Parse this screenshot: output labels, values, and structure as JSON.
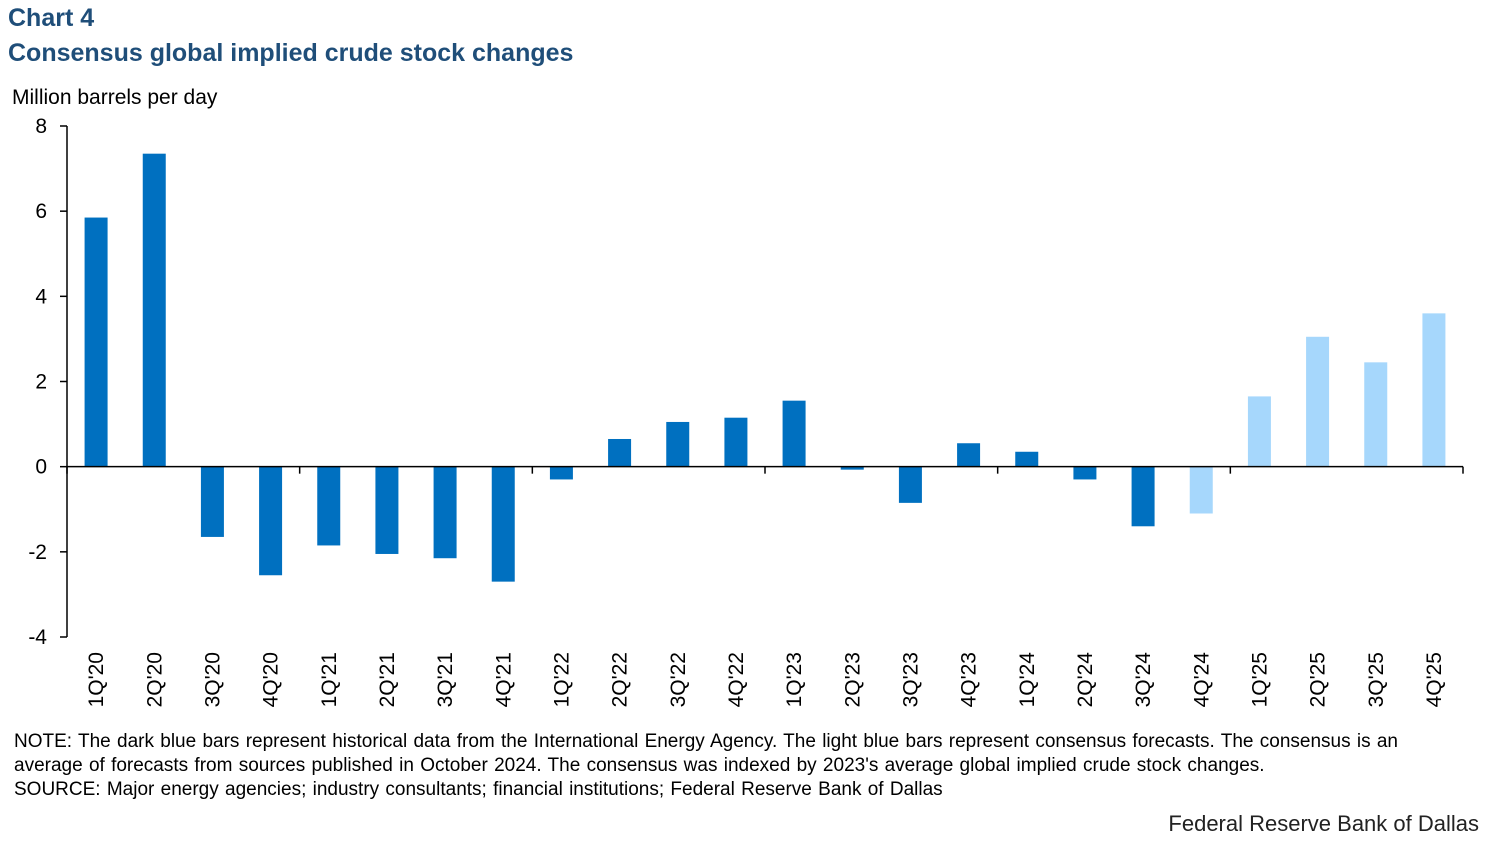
{
  "header": {
    "chart_label": "Chart 4",
    "title": "Consensus global implied crude stock changes"
  },
  "chart_data": {
    "type": "bar",
    "title": "Consensus global implied crude stock changes",
    "ylabel": "Million barrels per day",
    "xlabel": "",
    "ylim": [
      -4,
      8
    ],
    "yticks": [
      -4,
      -2,
      0,
      2,
      4,
      6,
      8
    ],
    "ytick_labels": [
      "-4",
      "-2",
      "0",
      "2",
      "4",
      "6",
      "8"
    ],
    "grid": false,
    "categories": [
      "1Q'20",
      "2Q'20",
      "3Q'20",
      "4Q'20",
      "1Q'21",
      "2Q'21",
      "3Q'21",
      "4Q'21",
      "1Q'22",
      "2Q'22",
      "3Q'22",
      "4Q'22",
      "1Q'23",
      "2Q'23",
      "3Q'23",
      "4Q'23",
      "1Q'24",
      "2Q'24",
      "3Q'24",
      "4Q'24",
      "1Q'25",
      "2Q'25",
      "3Q'25",
      "4Q'25"
    ],
    "values": [
      5.85,
      7.35,
      -1.65,
      -2.55,
      -1.85,
      -2.05,
      -2.15,
      -2.7,
      -0.3,
      0.65,
      1.05,
      1.15,
      1.55,
      -0.07,
      -0.85,
      0.55,
      0.35,
      -0.3,
      -1.4,
      -1.1,
      1.65,
      3.05,
      2.45,
      3.6
    ],
    "series_type": [
      "historical",
      "historical",
      "historical",
      "historical",
      "historical",
      "historical",
      "historical",
      "historical",
      "historical",
      "historical",
      "historical",
      "historical",
      "historical",
      "historical",
      "historical",
      "historical",
      "historical",
      "historical",
      "historical",
      "forecast",
      "forecast",
      "forecast",
      "forecast",
      "forecast"
    ],
    "colors": {
      "historical": "#0070c0",
      "forecast": "#a6d7fc"
    }
  },
  "footer": {
    "note": "NOTE: The dark blue bars represent historical data from the International Energy Agency. The light blue bars represent consensus forecasts. The consensus is an average of forecasts from sources published in October 2024. The consensus was indexed by 2023's average global implied crude stock changes.",
    "source": "SOURCE: Major energy agencies; industry consultants; financial institutions; Federal Reserve Bank of Dallas",
    "brand": "Federal Reserve Bank of Dallas"
  }
}
